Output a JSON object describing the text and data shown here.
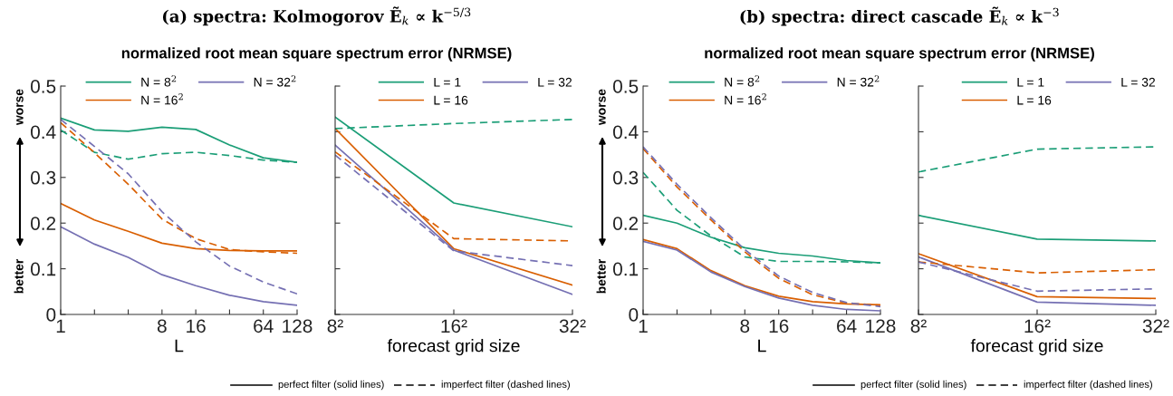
{
  "chart_data": [
    {
      "type": "line",
      "title": "(a) spectra: Kolmogorov Ẽ$_{k}$ ∝ k$^{−5/3}$",
      "subtitle": "normalized root mean square spectrum error (NRMSE)",
      "xlabel": "L",
      "log": "x",
      "legend": "top right",
      "annotations": [
        "worse",
        "better"
      ],
      "x": [
        1,
        2,
        4,
        8,
        16,
        32,
        64,
        128
      ],
      "xlim": [
        1,
        128
      ],
      "xticks": [
        1,
        {
          "value": 2,
          "label": null
        },
        {
          "value": 4,
          "label": null
        },
        8,
        16,
        {
          "value": 32,
          "label": null
        },
        64,
        128
      ],
      "ylim": [
        0,
        0.5
      ],
      "yticks": [
        0,
        0.1,
        0.2,
        0.3,
        0.4,
        0.5
      ],
      "series": [
        {
          "name": "N = 8$^{2}$",
          "color": "#1b9e77",
          "line_style": "solid",
          "values": [
            0.43,
            0.404,
            0.401,
            0.41,
            0.405,
            0.371,
            0.343,
            0.333
          ]
        },
        {
          "name": "N = 16$^{2}$",
          "color": "#d95f02",
          "line_style": "solid",
          "values": [
            0.243,
            0.207,
            0.182,
            0.156,
            0.144,
            0.14,
            0.139,
            0.139
          ]
        },
        {
          "name": "N = 32$^{2}$",
          "color": "#7570b3",
          "line_style": "solid",
          "values": [
            0.192,
            0.154,
            0.125,
            0.087,
            0.063,
            0.042,
            0.028,
            0.02
          ]
        },
        {
          "color": "#1b9e77",
          "line_style": "dashed",
          "values": [
            0.404,
            0.355,
            0.34,
            0.352,
            0.355,
            0.348,
            0.338,
            0.333
          ]
        },
        {
          "color": "#d95f02",
          "line_style": "dashed",
          "values": [
            0.42,
            0.354,
            0.285,
            0.209,
            0.166,
            0.142,
            0.137,
            0.134
          ]
        },
        {
          "color": "#7570b3",
          "line_style": "dashed",
          "values": [
            0.427,
            0.368,
            0.308,
            0.225,
            0.159,
            0.106,
            0.071,
            0.045
          ]
        }
      ]
    },
    {
      "type": "line",
      "xlabel": "forecast grid size",
      "legend": "top right",
      "tick_labels": "x",
      "annotations": [
        "perfect filter (solid lines)",
        "imperfect filter (dashed lines)"
      ],
      "categories": [
        "8²",
        "16²",
        "32²"
      ],
      "ylim": [
        0,
        0.5
      ],
      "yticks": [
        0,
        0.1,
        0.2,
        0.3,
        0.4,
        0.5
      ],
      "series": [
        {
          "name": "L = 1",
          "color": "#1b9e77",
          "line_style": "solid",
          "values": [
            0.432,
            0.244,
            0.192
          ]
        },
        {
          "name": "L = 16",
          "color": "#d95f02",
          "line_style": "solid",
          "values": [
            0.407,
            0.144,
            0.064
          ]
        },
        {
          "name": "L = 32",
          "color": "#7570b3",
          "line_style": "solid",
          "values": [
            0.371,
            0.141,
            0.044
          ]
        },
        {
          "color": "#1b9e77",
          "line_style": "dashed",
          "values": [
            0.407,
            0.418,
            0.427
          ]
        },
        {
          "color": "#d95f02",
          "line_style": "dashed",
          "values": [
            0.356,
            0.166,
            0.161
          ]
        },
        {
          "color": "#7570b3",
          "line_style": "dashed",
          "values": [
            0.349,
            0.139,
            0.107
          ]
        }
      ]
    },
    {
      "type": "line",
      "title": "(b) spectra: direct cascade Ẽ$_{k}$ ∝ k$^{−3}$",
      "subtitle": "normalized root mean square spectrum error (NRMSE)",
      "xlabel": "L",
      "log": "x",
      "legend": "top right",
      "annotations": [
        "worse",
        "better"
      ],
      "x": [
        1,
        2,
        4,
        8,
        16,
        32,
        64,
        128
      ],
      "xlim": [
        1,
        128
      ],
      "xticks": [
        1,
        {
          "value": 2,
          "label": null
        },
        {
          "value": 4,
          "label": null
        },
        8,
        16,
        {
          "value": 32,
          "label": null
        },
        64,
        128
      ],
      "ylim": [
        0,
        0.5
      ],
      "yticks": [
        0,
        0.1,
        0.2,
        0.3,
        0.4,
        0.5
      ],
      "series": [
        {
          "name": "N = 8$^{2}$",
          "color": "#1b9e77",
          "line_style": "solid",
          "values": [
            0.217,
            0.2,
            0.169,
            0.146,
            0.134,
            0.128,
            0.118,
            0.113
          ]
        },
        {
          "name": "N = 16$^{2}$",
          "color": "#d95f02",
          "line_style": "solid",
          "values": [
            0.164,
            0.144,
            0.096,
            0.063,
            0.04,
            0.028,
            0.023,
            0.021
          ]
        },
        {
          "name": "N = 32$^{2}$",
          "color": "#7570b3",
          "line_style": "solid",
          "values": [
            0.16,
            0.141,
            0.093,
            0.061,
            0.036,
            0.02,
            0.011,
            0.008
          ]
        },
        {
          "color": "#1b9e77",
          "line_style": "dashed",
          "values": [
            0.311,
            0.228,
            0.172,
            0.126,
            0.116,
            0.116,
            0.115,
            0.113
          ]
        },
        {
          "color": "#d95f02",
          "line_style": "dashed",
          "values": [
            0.363,
            0.279,
            0.207,
            0.137,
            0.079,
            0.043,
            0.025,
            0.02
          ]
        },
        {
          "color": "#7570b3",
          "line_style": "dashed",
          "values": [
            0.367,
            0.285,
            0.212,
            0.142,
            0.084,
            0.048,
            0.026,
            0.017
          ]
        }
      ]
    },
    {
      "type": "line",
      "xlabel": "forecast grid size",
      "legend": "top right",
      "tick_labels": "x",
      "annotations": [
        "perfect filter (solid lines)",
        "imperfect filter (dashed lines)"
      ],
      "categories": [
        "8²",
        "16²",
        "32²"
      ],
      "ylim": [
        0,
        0.5
      ],
      "yticks": [
        0,
        0.1,
        0.2,
        0.3,
        0.4,
        0.5
      ],
      "series": [
        {
          "name": "L = 1",
          "color": "#1b9e77",
          "line_style": "solid",
          "values": [
            0.217,
            0.165,
            0.161
          ]
        },
        {
          "name": "L = 16",
          "color": "#d95f02",
          "line_style": "solid",
          "values": [
            0.133,
            0.039,
            0.035
          ]
        },
        {
          "name": "L = 32",
          "color": "#7570b3",
          "line_style": "solid",
          "values": [
            0.126,
            0.027,
            0.02
          ]
        },
        {
          "color": "#1b9e77",
          "line_style": "dashed",
          "values": [
            0.312,
            0.362,
            0.367
          ]
        },
        {
          "color": "#d95f02",
          "line_style": "dashed",
          "values": [
            0.115,
            0.091,
            0.098
          ]
        },
        {
          "color": "#7570b3",
          "line_style": "dashed",
          "values": [
            0.115,
            0.051,
            0.056
          ]
        }
      ]
    }
  ]
}
